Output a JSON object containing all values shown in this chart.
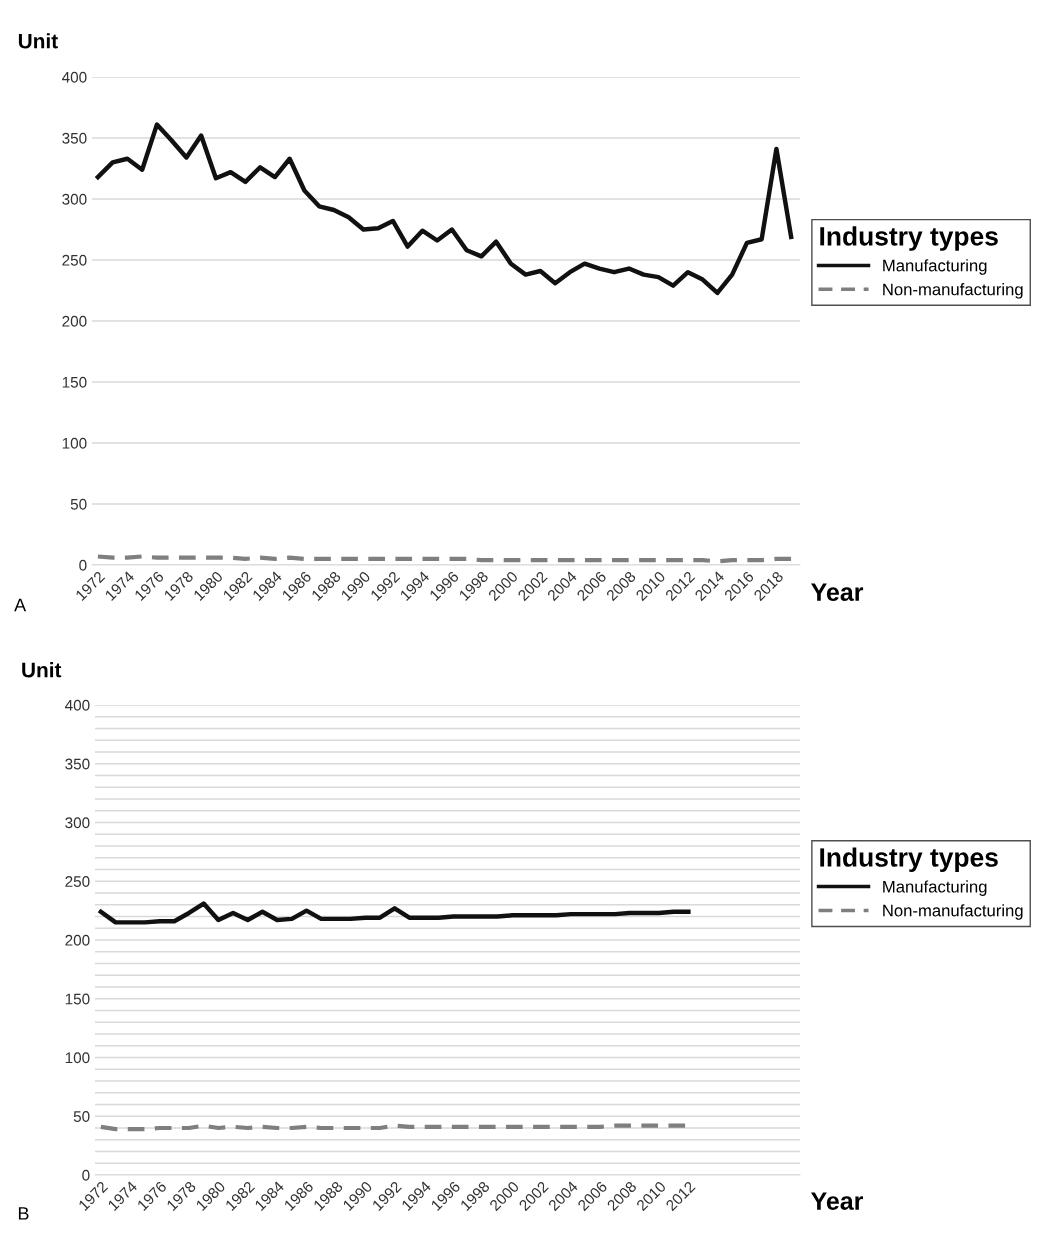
{
  "chart_data": [
    {
      "type": "line",
      "ylabel": "Unit",
      "xlabel": "Year",
      "legend_title": "Industry types",
      "legend": "right",
      "grid": "y",
      "marker": "none",
      "annotations": [
        "A"
      ],
      "categories": [
        "1972",
        null,
        "1974",
        null,
        "1976",
        null,
        "1978",
        null,
        "1980",
        null,
        "1982",
        null,
        "1984",
        null,
        "1986",
        null,
        "1988",
        null,
        "1990",
        null,
        "1992",
        null,
        "1994",
        null,
        "1996",
        null,
        "1998",
        null,
        "2000",
        null,
        "2002",
        null,
        "2004",
        null,
        "2006",
        null,
        "2008",
        null,
        "2010",
        null,
        "2012",
        null,
        "2014",
        null,
        "2016",
        null,
        "2018",
        null
      ],
      "ylim": [
        0,
        400
      ],
      "yticks": [
        0,
        50,
        100,
        150,
        200,
        250,
        300,
        350,
        400
      ],
      "series": [
        {
          "name": "Manufacturing",
          "color": "#111111",
          "line_style": "solid",
          "values": [
            318,
            330,
            333,
            324,
            361,
            348,
            334,
            352,
            317,
            322,
            314,
            326,
            318,
            333,
            307,
            294,
            291,
            285,
            275,
            276,
            282,
            261,
            274,
            266,
            275,
            258,
            253,
            265,
            247,
            238,
            241,
            231,
            240,
            247,
            243,
            240,
            243,
            238,
            236,
            229,
            240,
            234,
            223,
            238,
            264,
            267,
            341,
            269
          ]
        },
        {
          "name": "Non-manufacturing",
          "color": "#7f7f7f",
          "line_style": "dashed",
          "values": [
            7,
            6,
            6,
            7,
            6,
            6,
            6,
            6,
            6,
            6,
            5,
            6,
            5,
            6,
            5,
            5,
            5,
            5,
            5,
            5,
            5,
            5,
            5,
            5,
            5,
            5,
            4,
            4,
            4,
            4,
            4,
            4,
            4,
            4,
            4,
            4,
            4,
            4,
            4,
            4,
            4,
            4,
            3,
            4,
            4,
            4,
            5,
            5
          ]
        }
      ]
    },
    {
      "type": "line",
      "ylabel": "Unit",
      "xlabel": "Year",
      "legend_title": "Industry types",
      "legend": "right",
      "grid": "y",
      "marker": "none",
      "annotations": [
        "B"
      ],
      "categories": [
        "1972",
        null,
        "1974",
        null,
        "1976",
        null,
        "1978",
        null,
        "1980",
        null,
        "1982",
        null,
        "1984",
        null,
        "1986",
        null,
        "1988",
        null,
        "1990",
        null,
        "1992",
        null,
        "1994",
        null,
        "1996",
        null,
        "1998",
        null,
        "2000",
        null,
        "2002",
        null,
        "2004",
        null,
        "2006",
        null,
        "2008",
        null,
        "2010",
        null,
        "2012",
        null,
        null,
        null,
        null,
        null,
        null,
        null
      ],
      "ylim": [
        0,
        400
      ],
      "yticks": [
        0,
        {
          "value": 10,
          "label": null
        },
        {
          "value": 20,
          "label": null
        },
        {
          "value": 30,
          "label": null
        },
        {
          "value": 40,
          "label": null
        },
        50,
        {
          "value": 60,
          "label": null
        },
        {
          "value": 70,
          "label": null
        },
        {
          "value": 80,
          "label": null
        },
        {
          "value": 90,
          "label": null
        },
        100,
        {
          "value": 110,
          "label": null
        },
        {
          "value": 120,
          "label": null
        },
        {
          "value": 130,
          "label": null
        },
        {
          "value": 140,
          "label": null
        },
        150,
        {
          "value": 160,
          "label": null
        },
        {
          "value": 170,
          "label": null
        },
        {
          "value": 180,
          "label": null
        },
        {
          "value": 190,
          "label": null
        },
        200,
        {
          "value": 210,
          "label": null
        },
        {
          "value": 220,
          "label": null
        },
        {
          "value": 230,
          "label": null
        },
        {
          "value": 240,
          "label": null
        },
        250,
        {
          "value": 260,
          "label": null
        },
        {
          "value": 270,
          "label": null
        },
        {
          "value": 280,
          "label": null
        },
        {
          "value": 290,
          "label": null
        },
        300,
        {
          "value": 310,
          "label": null
        },
        {
          "value": 320,
          "label": null
        },
        {
          "value": 330,
          "label": null
        },
        {
          "value": 340,
          "label": null
        },
        350,
        {
          "value": 360,
          "label": null
        },
        {
          "value": 370,
          "label": null
        },
        {
          "value": 380,
          "label": null
        },
        {
          "value": 390,
          "label": null
        },
        400
      ],
      "series": [
        {
          "name": "Manufacturing",
          "color": "#111111",
          "line_style": "solid",
          "values": [
            224,
            215,
            215,
            215,
            216,
            216,
            223,
            231,
            217,
            223,
            217,
            224,
            217,
            218,
            225,
            218,
            218,
            218,
            219,
            219,
            227,
            219,
            219,
            219,
            220,
            220,
            220,
            220,
            221,
            221,
            221,
            221,
            222,
            222,
            222,
            222,
            223,
            223,
            223,
            224,
            224,
            null,
            null,
            null,
            null,
            null,
            null,
            null
          ]
        },
        {
          "name": "Non-manufacturing",
          "color": "#7f7f7f",
          "line_style": "dashed",
          "values": [
            41,
            39,
            39,
            39,
            40,
            40,
            40,
            42,
            40,
            41,
            40,
            41,
            40,
            40,
            41,
            40,
            40,
            40,
            40,
            40,
            42,
            41,
            41,
            41,
            41,
            41,
            41,
            41,
            41,
            41,
            41,
            41,
            41,
            41,
            41,
            42,
            42,
            42,
            42,
            42,
            42,
            null,
            null,
            null,
            null,
            null,
            null,
            null
          ]
        }
      ]
    }
  ]
}
